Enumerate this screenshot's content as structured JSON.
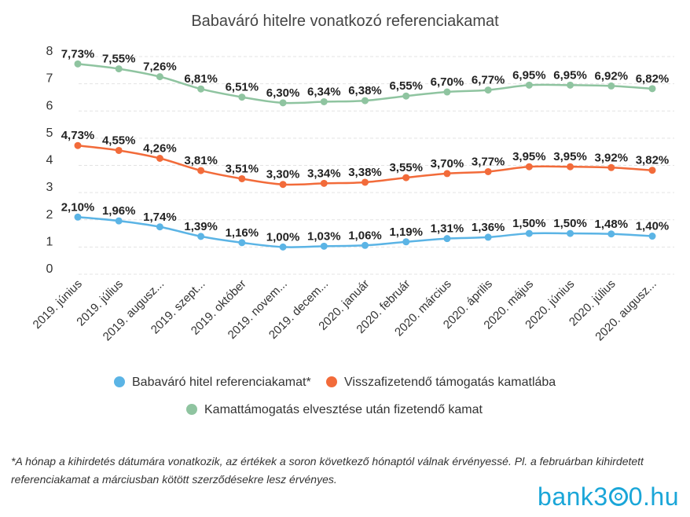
{
  "chart_data": {
    "type": "line",
    "title": "Babaváró hitelre vonatkozó referenciakamat",
    "categories": [
      "2019. június",
      "2019. július",
      "2019. augusz...",
      "2019. szept...",
      "2019. október",
      "2019. novem...",
      "2019. decem...",
      "2020. január",
      "2020. február",
      "2020. március",
      "2020. április",
      "2020. május",
      "2020. június",
      "2020. július",
      "2020. augusz..."
    ],
    "ylim": [
      0,
      8
    ],
    "yticks": [
      "0",
      "1",
      "2",
      "3",
      "4",
      "5",
      "6",
      "7",
      "8"
    ],
    "grid": true,
    "legend_placement": "bottom",
    "series": [
      {
        "name": "Babaváró hitel referenciakamat*",
        "color": "#5bb4e5",
        "values": [
          2.1,
          1.96,
          1.74,
          1.39,
          1.16,
          1.0,
          1.03,
          1.06,
          1.19,
          1.31,
          1.36,
          1.5,
          1.5,
          1.48,
          1.4
        ],
        "labels": [
          "2,10%",
          "1,96%",
          "1,74%",
          "1,39%",
          "1,16%",
          "1,00%",
          "1,03%",
          "1,06%",
          "1,19%",
          "1,31%",
          "1,36%",
          "1,50%",
          "1,50%",
          "1,48%",
          "1,40%"
        ]
      },
      {
        "name": "Visszafizetendő támogatás kamatlába",
        "color": "#f26b3a",
        "values": [
          4.73,
          4.55,
          4.26,
          3.81,
          3.51,
          3.3,
          3.34,
          3.38,
          3.55,
          3.7,
          3.77,
          3.95,
          3.95,
          3.92,
          3.82
        ],
        "labels": [
          "4,73%",
          "4,55%",
          "4,26%",
          "3,81%",
          "3,51%",
          "3,30%",
          "3,34%",
          "3,38%",
          "3,55%",
          "3,70%",
          "3,77%",
          "3,95%",
          "3,95%",
          "3,92%",
          "3,82%"
        ]
      },
      {
        "name": "Kamattámogatás elvesztése után fizetendő kamat",
        "color": "#8fc4a0",
        "values": [
          7.73,
          7.55,
          7.26,
          6.81,
          6.51,
          6.3,
          6.34,
          6.38,
          6.55,
          6.7,
          6.77,
          6.95,
          6.95,
          6.92,
          6.82
        ],
        "labels": [
          "7,73%",
          "7,55%",
          "7,26%",
          "6,81%",
          "6,51%",
          "6,30%",
          "6,34%",
          "6,38%",
          "6,55%",
          "6,70%",
          "6,77%",
          "6,95%",
          "6,95%",
          "6,92%",
          "6,82%"
        ]
      }
    ]
  },
  "footnote": "*A hónap a kihirdetés dátumára vonatkozik, az értékek a soron következő hónaptól válnak érvényessé. Pl. a februárban kihirdetett referenciakamat a márciusban kötött szerződésekre lesz érvényes.",
  "logo": {
    "text_before": "bank3",
    "text_after": "0.hu"
  }
}
